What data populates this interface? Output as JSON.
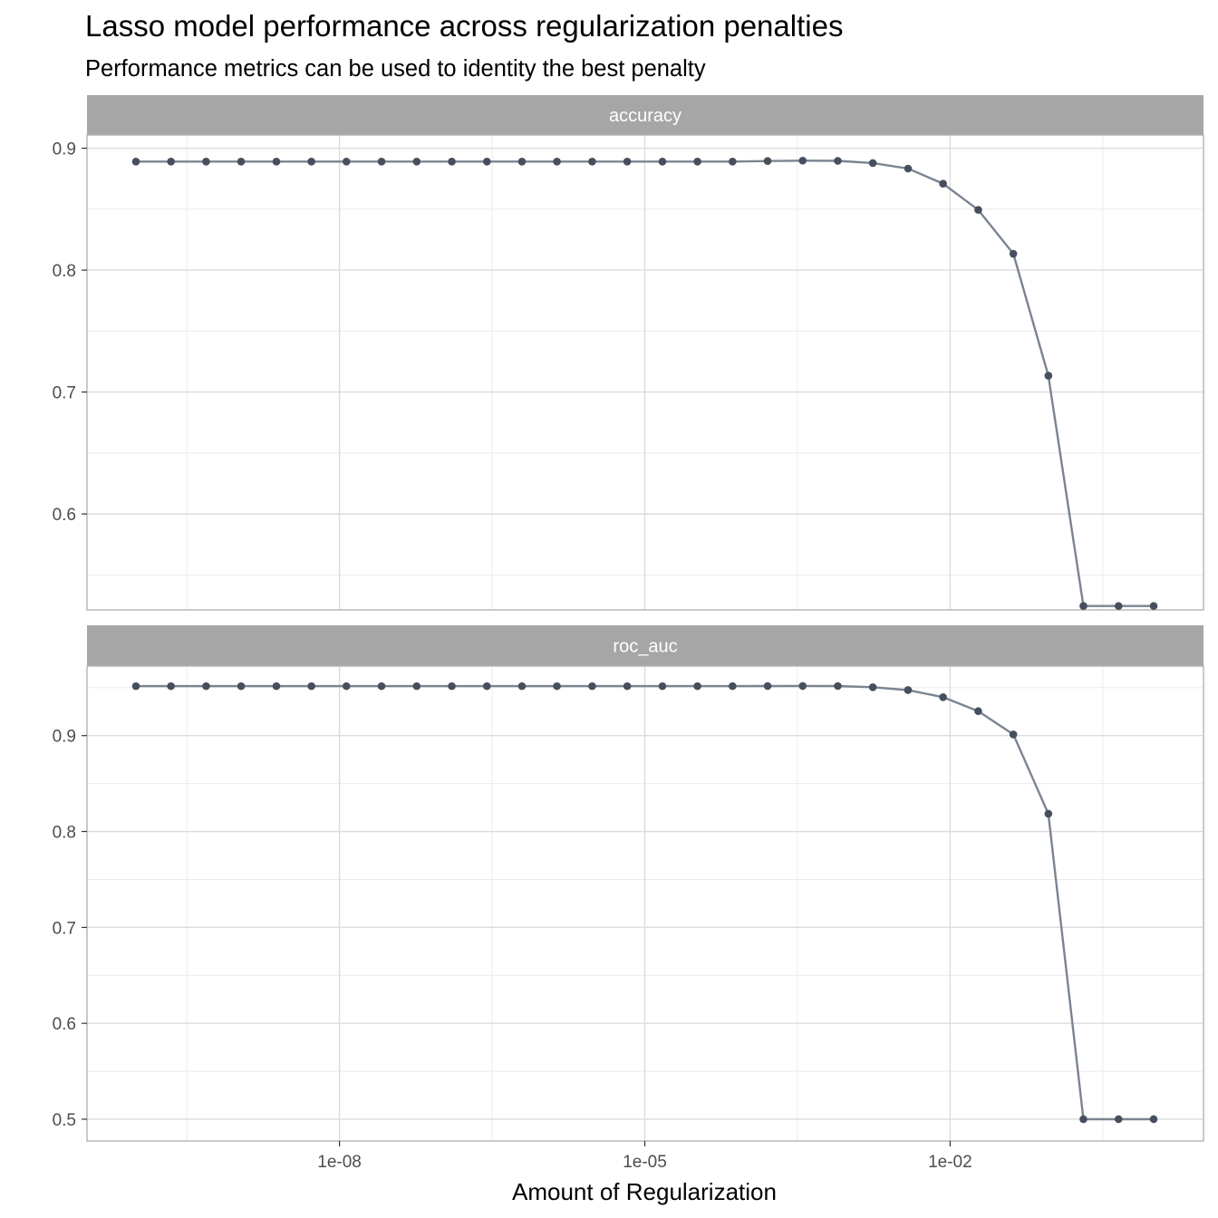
{
  "title": "Lasso model performance across regularization penalties",
  "subtitle": "Performance metrics can be used to identity the best penalty",
  "chart_data": {
    "type": "line",
    "title": "Lasso model performance across regularization penalties",
    "subtitle": "Performance metrics can be used to identity the best penalty",
    "xlabel": "Amount of Regularization",
    "ylabel": "",
    "x_scale": "log10",
    "x_ticks": [
      1e-08,
      1e-05,
      0.01
    ],
    "x_tick_labels": [
      "1e-08",
      "1e-05",
      "1e-02"
    ],
    "x": [
      1e-10,
      2.21e-10,
      4.89e-10,
      1.08e-09,
      2.4e-09,
      5.3e-09,
      1.17e-08,
      2.59e-08,
      5.74e-08,
      1.27e-07,
      2.81e-07,
      6.21e-07,
      1.37e-06,
      3.04e-06,
      6.72e-06,
      1.49e-05,
      3.29e-05,
      7.28e-05,
      0.000161,
      0.000356,
      0.000788,
      0.00174,
      0.00386,
      0.00853,
      0.0189,
      0.0418,
      0.0924,
      0.204,
      0.452,
      1.0
    ],
    "grid": true,
    "legend": "none",
    "line_color": "#7a8491",
    "point_color": "#454f5e",
    "strip_color": "#a6a6a6",
    "panels": [
      {
        "name": "accuracy",
        "ylim": [
          0.5213,
          0.9108
        ],
        "y_ticks": [
          0.6,
          0.7,
          0.8,
          0.9
        ],
        "y_tick_labels": [
          "0.6",
          "0.7",
          "0.8",
          "0.9"
        ],
        "values": [
          0.889,
          0.889,
          0.889,
          0.889,
          0.889,
          0.889,
          0.889,
          0.889,
          0.889,
          0.889,
          0.889,
          0.889,
          0.889,
          0.889,
          0.889,
          0.889,
          0.889,
          0.889,
          0.8895,
          0.8898,
          0.8896,
          0.8878,
          0.8833,
          0.8709,
          0.8494,
          0.8134,
          0.7134,
          0.5245,
          0.5245,
          0.5245
        ]
      },
      {
        "name": "roc_auc",
        "ylim": [
          0.4773,
          0.9725
        ],
        "y_ticks": [
          0.5,
          0.6,
          0.7,
          0.8,
          0.9
        ],
        "y_tick_labels": [
          "0.5",
          "0.6",
          "0.7",
          "0.8",
          "0.9"
        ],
        "values": [
          0.9516,
          0.9516,
          0.9516,
          0.9516,
          0.9516,
          0.9516,
          0.9516,
          0.9516,
          0.9516,
          0.9516,
          0.9516,
          0.9516,
          0.9516,
          0.9516,
          0.9516,
          0.9516,
          0.9516,
          0.9516,
          0.9517,
          0.9518,
          0.9517,
          0.9505,
          0.9475,
          0.9401,
          0.9255,
          0.9012,
          0.8185,
          0.5,
          0.5,
          0.5
        ]
      }
    ]
  }
}
